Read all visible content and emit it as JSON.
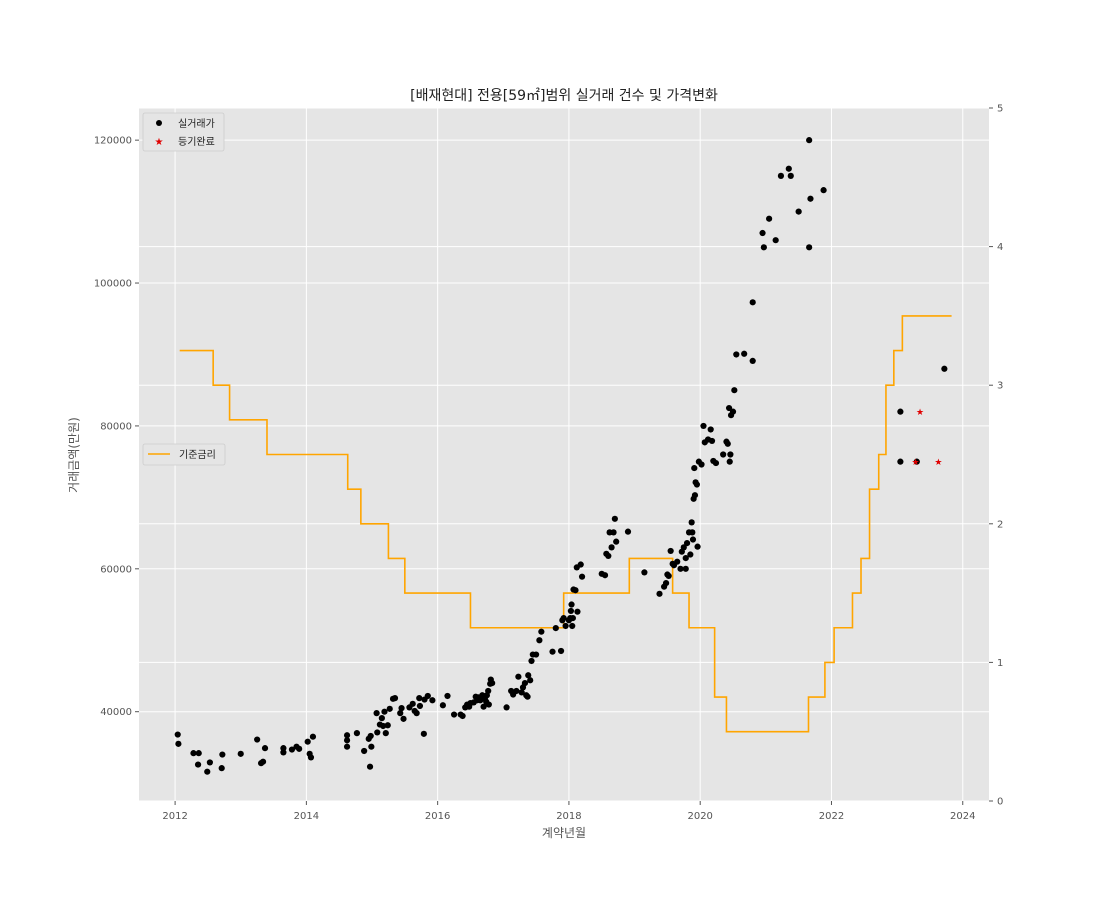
{
  "chart_data": {
    "type": "scatter",
    "title": "[배재현대] 전용[59㎡]범위 실거래 건수 및 가격변화",
    "xlabel": "계약년월",
    "ylabel": "거래금액(만원)",
    "xlim": [
      2011.45,
      2024.4
    ],
    "ylim": [
      27500,
      124500
    ],
    "y2lim": [
      0,
      5
    ],
    "x_ticks": [
      2012,
      2014,
      2016,
      2018,
      2020,
      2022,
      2024
    ],
    "x_tick_labels": [
      "2012",
      "2014",
      "2016",
      "2018",
      "2020",
      "2022",
      "2024"
    ],
    "y_ticks": [
      40000,
      60000,
      80000,
      100000,
      120000
    ],
    "y_tick_labels": [
      "40000",
      "60000",
      "80000",
      "100000",
      "120000"
    ],
    "y2_ticks": [
      0,
      1,
      2,
      3,
      4,
      5
    ],
    "y2_tick_labels": [
      "0",
      "1",
      "2",
      "3",
      "4",
      "5"
    ],
    "grid": true,
    "background_color": "#e5e5e5",
    "legends": [
      {
        "placement": "top-left",
        "entries": [
          "실거래가",
          "등기완료"
        ]
      },
      {
        "placement": "center-left",
        "entries": [
          "기준금리"
        ]
      }
    ],
    "series": [
      {
        "name": "실거래가",
        "marker": "circle",
        "color": "#000000",
        "points": [
          [
            2012.04,
            36800
          ],
          [
            2012.05,
            35500
          ],
          [
            2012.28,
            34200
          ],
          [
            2012.36,
            34200
          ],
          [
            2012.35,
            32600
          ],
          [
            2012.49,
            31600
          ],
          [
            2012.53,
            32900
          ],
          [
            2012.71,
            32100
          ],
          [
            2012.72,
            34000
          ],
          [
            2013.0,
            34100
          ],
          [
            2013.25,
            36100
          ],
          [
            2013.31,
            32800
          ],
          [
            2013.34,
            33000
          ],
          [
            2013.37,
            34900
          ],
          [
            2013.65,
            34900
          ],
          [
            2013.65,
            34300
          ],
          [
            2013.78,
            34700
          ],
          [
            2013.85,
            35100
          ],
          [
            2013.89,
            34800
          ],
          [
            2014.02,
            35800
          ],
          [
            2014.05,
            34100
          ],
          [
            2014.07,
            33600
          ],
          [
            2014.1,
            36500
          ],
          [
            2014.62,
            36700
          ],
          [
            2014.62,
            36000
          ],
          [
            2014.62,
            35100
          ],
          [
            2014.77,
            37000
          ],
          [
            2014.88,
            34500
          ],
          [
            2014.95,
            36200
          ],
          [
            2014.98,
            36600
          ],
          [
            2014.97,
            32300
          ],
          [
            2014.99,
            35100
          ],
          [
            2015.07,
            39800
          ],
          [
            2015.08,
            37100
          ],
          [
            2015.12,
            38200
          ],
          [
            2015.15,
            39100
          ],
          [
            2015.17,
            38000
          ],
          [
            2015.19,
            40000
          ],
          [
            2015.21,
            37000
          ],
          [
            2015.24,
            38100
          ],
          [
            2015.27,
            40400
          ],
          [
            2015.32,
            41800
          ],
          [
            2015.35,
            41900
          ],
          [
            2015.43,
            39800
          ],
          [
            2015.45,
            40500
          ],
          [
            2015.48,
            39000
          ],
          [
            2015.57,
            40600
          ],
          [
            2015.62,
            41100
          ],
          [
            2015.65,
            40100
          ],
          [
            2015.68,
            39800
          ],
          [
            2015.72,
            41900
          ],
          [
            2015.73,
            40800
          ],
          [
            2015.79,
            36900
          ],
          [
            2015.8,
            41700
          ],
          [
            2015.85,
            42200
          ],
          [
            2015.92,
            41600
          ],
          [
            2016.08,
            40900
          ],
          [
            2016.15,
            42200
          ],
          [
            2016.25,
            39600
          ],
          [
            2016.35,
            39600
          ],
          [
            2016.38,
            39400
          ],
          [
            2016.42,
            40600
          ],
          [
            2016.45,
            41000
          ],
          [
            2016.48,
            40700
          ],
          [
            2016.5,
            41200
          ],
          [
            2016.55,
            41300
          ],
          [
            2016.58,
            42100
          ],
          [
            2016.6,
            41600
          ],
          [
            2016.62,
            42000
          ],
          [
            2016.65,
            41600
          ],
          [
            2016.68,
            42300
          ],
          [
            2016.7,
            40700
          ],
          [
            2016.72,
            41800
          ],
          [
            2016.74,
            41400
          ],
          [
            2016.75,
            42300
          ],
          [
            2016.77,
            42900
          ],
          [
            2016.78,
            41000
          ],
          [
            2016.8,
            43900
          ],
          [
            2016.81,
            44500
          ],
          [
            2016.83,
            44000
          ],
          [
            2017.05,
            40600
          ],
          [
            2017.12,
            42900
          ],
          [
            2017.15,
            42400
          ],
          [
            2017.2,
            42900
          ],
          [
            2017.23,
            44900
          ],
          [
            2017.28,
            42700
          ],
          [
            2017.3,
            43400
          ],
          [
            2017.33,
            44000
          ],
          [
            2017.35,
            42300
          ],
          [
            2017.37,
            42100
          ],
          [
            2017.38,
            45100
          ],
          [
            2017.41,
            44400
          ],
          [
            2017.43,
            47100
          ],
          [
            2017.45,
            48000
          ],
          [
            2017.5,
            48000
          ],
          [
            2017.55,
            50000
          ],
          [
            2017.58,
            51200
          ],
          [
            2017.75,
            48400
          ],
          [
            2017.8,
            51700
          ],
          [
            2017.88,
            48500
          ],
          [
            2017.9,
            52800
          ],
          [
            2017.92,
            53100
          ],
          [
            2017.95,
            52000
          ],
          [
            2018.0,
            52800
          ],
          [
            2018.02,
            53100
          ],
          [
            2018.03,
            54100
          ],
          [
            2018.04,
            55000
          ],
          [
            2018.05,
            52000
          ],
          [
            2018.06,
            53100
          ],
          [
            2018.07,
            57100
          ],
          [
            2018.1,
            57000
          ],
          [
            2018.12,
            60200
          ],
          [
            2018.13,
            54000
          ],
          [
            2018.18,
            60600
          ],
          [
            2018.2,
            58900
          ],
          [
            2018.5,
            59300
          ],
          [
            2018.55,
            59100
          ],
          [
            2018.57,
            62100
          ],
          [
            2018.6,
            61800
          ],
          [
            2018.62,
            65100
          ],
          [
            2018.65,
            63000
          ],
          [
            2018.68,
            65100
          ],
          [
            2018.7,
            67000
          ],
          [
            2018.72,
            63800
          ],
          [
            2018.9,
            65200
          ],
          [
            2019.15,
            59500
          ],
          [
            2019.38,
            56500
          ],
          [
            2019.45,
            57500
          ],
          [
            2019.48,
            58000
          ],
          [
            2019.5,
            59200
          ],
          [
            2019.52,
            59000
          ],
          [
            2019.55,
            62500
          ],
          [
            2019.58,
            60700
          ],
          [
            2019.6,
            60500
          ],
          [
            2019.65,
            61000
          ],
          [
            2019.7,
            60000
          ],
          [
            2019.72,
            62400
          ],
          [
            2019.75,
            63000
          ],
          [
            2019.78,
            60000
          ],
          [
            2019.78,
            61500
          ],
          [
            2019.8,
            63600
          ],
          [
            2019.83,
            65100
          ],
          [
            2019.85,
            62000
          ],
          [
            2019.87,
            66500
          ],
          [
            2019.88,
            65100
          ],
          [
            2019.89,
            64100
          ],
          [
            2019.9,
            69800
          ],
          [
            2019.91,
            74100
          ],
          [
            2019.92,
            70300
          ],
          [
            2019.93,
            72100
          ],
          [
            2019.95,
            71800
          ],
          [
            2019.96,
            63100
          ],
          [
            2019.98,
            75000
          ],
          [
            2020.02,
            74600
          ],
          [
            2020.05,
            80000
          ],
          [
            2020.07,
            77700
          ],
          [
            2020.12,
            78100
          ],
          [
            2020.16,
            79500
          ],
          [
            2020.18,
            77900
          ],
          [
            2020.2,
            75100
          ],
          [
            2020.24,
            74800
          ],
          [
            2020.35,
            76000
          ],
          [
            2020.4,
            77800
          ],
          [
            2020.42,
            77500
          ],
          [
            2020.44,
            82500
          ],
          [
            2020.45,
            75000
          ],
          [
            2020.46,
            76000
          ],
          [
            2020.47,
            81500
          ],
          [
            2020.5,
            82000
          ],
          [
            2020.52,
            85000
          ],
          [
            2020.55,
            90000
          ],
          [
            2020.67,
            90100
          ],
          [
            2020.8,
            89100
          ],
          [
            2020.8,
            97300
          ],
          [
            2020.95,
            107000
          ],
          [
            2020.97,
            105000
          ],
          [
            2021.05,
            109000
          ],
          [
            2021.15,
            106000
          ],
          [
            2021.23,
            115000
          ],
          [
            2021.35,
            116000
          ],
          [
            2021.38,
            115000
          ],
          [
            2021.5,
            110000
          ],
          [
            2021.66,
            120000
          ],
          [
            2021.66,
            105000
          ],
          [
            2021.68,
            111800
          ],
          [
            2021.88,
            113000
          ],
          [
            2023.05,
            82000
          ],
          [
            2023.05,
            75000
          ],
          [
            2023.3,
            75000
          ],
          [
            2023.72,
            88000
          ]
        ]
      },
      {
        "name": "등기완료",
        "marker": "star",
        "color": "#e00000",
        "points": [
          [
            2023.28,
            75000
          ],
          [
            2023.35,
            82000
          ],
          [
            2023.63,
            75000
          ]
        ]
      },
      {
        "name": "기준금리",
        "axis": "right",
        "type": "step",
        "color": "#ffa500",
        "points": [
          [
            2012.07,
            3.25
          ],
          [
            2012.58,
            3.0
          ],
          [
            2012.83,
            2.75
          ],
          [
            2013.4,
            2.5
          ],
          [
            2014.63,
            2.25
          ],
          [
            2014.83,
            2.0
          ],
          [
            2015.25,
            1.75
          ],
          [
            2015.5,
            1.5
          ],
          [
            2016.5,
            1.25
          ],
          [
            2017.92,
            1.5
          ],
          [
            2018.92,
            1.75
          ],
          [
            2019.58,
            1.5
          ],
          [
            2019.83,
            1.25
          ],
          [
            2020.22,
            0.75
          ],
          [
            2020.4,
            0.5
          ],
          [
            2021.65,
            0.75
          ],
          [
            2021.9,
            1.0
          ],
          [
            2022.04,
            1.25
          ],
          [
            2022.32,
            1.5
          ],
          [
            2022.45,
            1.75
          ],
          [
            2022.58,
            2.25
          ],
          [
            2022.72,
            2.5
          ],
          [
            2022.83,
            3.0
          ],
          [
            2022.95,
            3.25
          ],
          [
            2023.08,
            3.5
          ],
          [
            2023.83,
            3.5
          ]
        ]
      }
    ]
  }
}
